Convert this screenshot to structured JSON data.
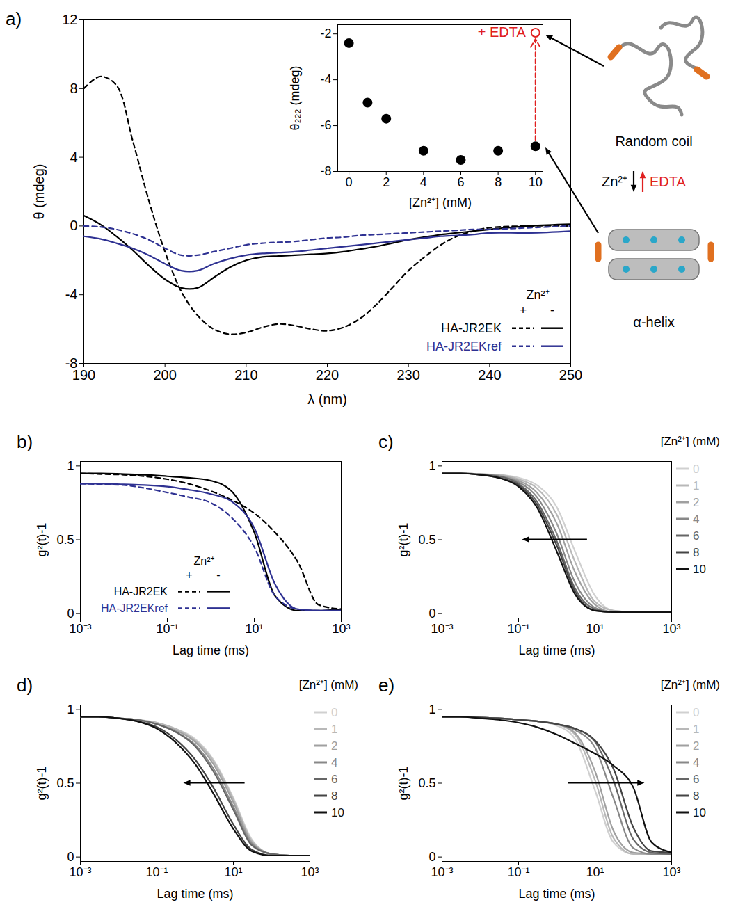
{
  "chart_data": [
    {
      "panel": "a)",
      "type": "line",
      "x_label": "λ (nm)",
      "y_label": "θ (mdeg)",
      "xlim": [
        190,
        250
      ],
      "xticks": [
        190,
        200,
        210,
        220,
        230,
        240,
        250
      ],
      "ylim": [
        -8,
        12
      ],
      "yticks": [
        -8,
        -4,
        0,
        4,
        8,
        12
      ],
      "legend": "bottom-right",
      "legend_title": "Zn²⁺",
      "x": [
        190,
        192,
        194,
        196,
        198,
        200,
        202,
        204,
        206,
        208,
        210,
        212,
        214,
        216,
        218,
        220,
        222,
        224,
        226,
        228,
        230,
        232,
        234,
        236,
        238,
        240,
        245,
        250
      ],
      "series": [
        {
          "name": "HA-JR2EK",
          "group": "+",
          "color": "#000000",
          "line_style": "dashed",
          "values": [
            8.0,
            8.7,
            8.2,
            5.0,
            1.5,
            -1.5,
            -3.8,
            -5.2,
            -6.0,
            -6.3,
            -6.2,
            -5.9,
            -5.7,
            -5.8,
            -6.0,
            -6.1,
            -5.9,
            -5.4,
            -4.6,
            -3.6,
            -2.6,
            -1.8,
            -1.1,
            -0.6,
            -0.3,
            -0.1,
            0,
            0
          ]
        },
        {
          "name": "HA-JR2EK",
          "group": "-",
          "color": "#000000",
          "line_style": "solid",
          "values": [
            0.6,
            0.1,
            -0.6,
            -1.4,
            -2.3,
            -3.1,
            -3.6,
            -3.6,
            -3.0,
            -2.4,
            -2.0,
            -1.8,
            -1.75,
            -1.7,
            -1.65,
            -1.6,
            -1.5,
            -1.35,
            -1.2,
            -1.0,
            -0.8,
            -0.65,
            -0.5,
            -0.4,
            -0.3,
            -0.2,
            0,
            0.1
          ]
        },
        {
          "name": "HA-JR2EKref",
          "group": "+",
          "color": "#2e3192",
          "line_style": "dashed",
          "values": [
            0,
            -0.05,
            -0.2,
            -0.45,
            -0.8,
            -1.3,
            -1.7,
            -1.7,
            -1.5,
            -1.3,
            -1.1,
            -1.0,
            -0.95,
            -0.9,
            -0.8,
            -0.7,
            -0.65,
            -0.55,
            -0.5,
            -0.45,
            -0.4,
            -0.35,
            -0.3,
            -0.25,
            -0.2,
            -0.2,
            -0.1,
            0
          ]
        },
        {
          "name": "HA-JR2EKref",
          "group": "-",
          "color": "#2e3192",
          "line_style": "solid",
          "values": [
            -0.6,
            -0.75,
            -1.0,
            -1.3,
            -1.7,
            -2.2,
            -2.6,
            -2.6,
            -2.2,
            -1.9,
            -1.7,
            -1.6,
            -1.55,
            -1.5,
            -1.4,
            -1.3,
            -1.2,
            -1.1,
            -1.0,
            -0.9,
            -0.8,
            -0.7,
            -0.6,
            -0.55,
            -0.5,
            -0.4,
            -0.4,
            -0.3
          ]
        }
      ],
      "annotations": [
        {
          "text": "Random coil"
        },
        {
          "text": "Zn²⁺"
        },
        {
          "text": "EDTA",
          "color": "#e02020"
        },
        {
          "text": "α-helix"
        }
      ],
      "inset": {
        "type": "scatter",
        "x_label": "[Zn²⁺] (mM)",
        "y_label": "θ₂₂₂ (mdeg)",
        "xlim": [
          -0.6,
          10.4
        ],
        "xticks": [
          0,
          2,
          4,
          6,
          8,
          10
        ],
        "ylim": [
          -8,
          -1.6
        ],
        "yticks": [
          -8,
          -6,
          -4,
          -2
        ],
        "series": [
          {
            "color": "#000000",
            "marker": "circle",
            "x": [
              0,
              1,
              2,
              4,
              6,
              8,
              10
            ],
            "values": [
              -2.4,
              -5.0,
              -5.7,
              -7.1,
              -7.5,
              -7.1,
              -6.9
            ]
          },
          {
            "name": "+ EDTA",
            "color": "#e02020",
            "marker": "open-circle",
            "x": [
              10
            ],
            "values": [
              -1.95
            ]
          }
        ]
      }
    },
    {
      "panel": "b)",
      "type": "line",
      "log": "x",
      "x_label": "Lag time (ms)",
      "y_label": "g²(t)-1",
      "xlim": [
        0.001,
        1000
      ],
      "xticks": [
        {
          "value": 0.001,
          "label": "10⁻³"
        },
        {
          "value": 0.1,
          "label": "10⁻¹"
        },
        {
          "value": 10,
          "label": "10¹"
        },
        {
          "value": 1000,
          "label": "10³"
        }
      ],
      "ylim": [
        -0.03,
        1.03
      ],
      "yticks": [
        0,
        0.5,
        1
      ],
      "legend": "bottom-left",
      "legend_title": "Zn²⁺",
      "x": [
        0.001,
        0.003,
        0.01,
        0.03,
        0.1,
        0.3,
        1,
        3,
        10,
        30,
        100,
        300,
        1000
      ],
      "series": [
        {
          "name": "HA-JR2EK",
          "group": "+",
          "color": "#000000",
          "line_style": "dashed",
          "values": [
            0.95,
            0.945,
            0.94,
            0.93,
            0.91,
            0.88,
            0.83,
            0.77,
            0.68,
            0.55,
            0.35,
            0.06,
            0.03
          ]
        },
        {
          "name": "HA-JR2EK",
          "group": "-",
          "color": "#000000",
          "line_style": "solid",
          "values": [
            0.95,
            0.95,
            0.945,
            0.94,
            0.93,
            0.92,
            0.9,
            0.83,
            0.55,
            0.12,
            0.02,
            0.02,
            0.03
          ]
        },
        {
          "name": "HA-JR2EKref",
          "group": "+",
          "color": "#2e3192",
          "line_style": "dashed",
          "values": [
            0.88,
            0.875,
            0.87,
            0.85,
            0.82,
            0.79,
            0.75,
            0.65,
            0.45,
            0.12,
            0.03,
            0.02,
            0.02
          ]
        },
        {
          "name": "HA-JR2EKref",
          "group": "-",
          "color": "#2e3192",
          "line_style": "solid",
          "values": [
            0.88,
            0.88,
            0.875,
            0.87,
            0.86,
            0.84,
            0.81,
            0.76,
            0.58,
            0.2,
            0.03,
            0.02,
            0.02
          ]
        }
      ]
    },
    {
      "panel": "c)",
      "type": "line",
      "log": "x",
      "x_label": "Lag time (ms)",
      "y_label": "g²(t)-1",
      "xlim": [
        0.001,
        1000
      ],
      "xticks": [
        {
          "value": 0.001,
          "label": "10⁻³"
        },
        {
          "value": 0.1,
          "label": "10⁻¹"
        },
        {
          "value": 10,
          "label": "10¹"
        },
        {
          "value": 1000,
          "label": "10³"
        }
      ],
      "ylim": [
        -0.03,
        1.03
      ],
      "yticks": [
        0,
        0.5,
        1
      ],
      "legend": "right",
      "legend_title": "[Zn²⁺] (mM)",
      "x": [
        0.001,
        0.003,
        0.01,
        0.03,
        0.1,
        0.3,
        1,
        3,
        10,
        30,
        100,
        300,
        1000
      ],
      "series": [
        {
          "name": "0",
          "color": "#d0d0d0",
          "values": [
            0.95,
            0.95,
            0.945,
            0.94,
            0.92,
            0.87,
            0.72,
            0.42,
            0.12,
            0.02,
            0.01,
            0.01,
            0.01
          ]
        },
        {
          "name": "1",
          "color": "#b8b8b8",
          "values": [
            0.95,
            0.95,
            0.945,
            0.94,
            0.91,
            0.85,
            0.67,
            0.35,
            0.08,
            0.02,
            0.01,
            0.01,
            0.01
          ]
        },
        {
          "name": "2",
          "color": "#a0a0a0",
          "values": [
            0.95,
            0.95,
            0.945,
            0.935,
            0.9,
            0.82,
            0.61,
            0.28,
            0.06,
            0.01,
            0.01,
            0.01,
            0.01
          ]
        },
        {
          "name": "4",
          "color": "#888888",
          "values": [
            0.95,
            0.95,
            0.945,
            0.93,
            0.89,
            0.79,
            0.54,
            0.21,
            0.04,
            0.01,
            0.01,
            0.01,
            0.01
          ]
        },
        {
          "name": "6",
          "color": "#666666",
          "values": [
            0.95,
            0.95,
            0.94,
            0.93,
            0.88,
            0.76,
            0.49,
            0.17,
            0.03,
            0.01,
            0.01,
            0.01,
            0.01
          ]
        },
        {
          "name": "8",
          "color": "#444444",
          "values": [
            0.95,
            0.95,
            0.94,
            0.92,
            0.87,
            0.74,
            0.46,
            0.15,
            0.02,
            0.01,
            0.01,
            0.01,
            0.01
          ]
        },
        {
          "name": "10",
          "color": "#111111",
          "values": [
            0.95,
            0.95,
            0.94,
            0.92,
            0.86,
            0.72,
            0.42,
            0.13,
            0.02,
            0.01,
            0.01,
            0.01,
            0.01
          ]
        }
      ]
    },
    {
      "panel": "d)",
      "type": "line",
      "log": "x",
      "x_label": "Lag time (ms)",
      "y_label": "g²(t)-1",
      "xlim": [
        0.001,
        1000
      ],
      "xticks": [
        {
          "value": 0.001,
          "label": "10⁻³"
        },
        {
          "value": 0.1,
          "label": "10⁻¹"
        },
        {
          "value": 10,
          "label": "10¹"
        },
        {
          "value": 1000,
          "label": "10³"
        }
      ],
      "ylim": [
        -0.03,
        1.03
      ],
      "yticks": [
        0,
        0.5,
        1
      ],
      "legend": "right",
      "legend_title": "[Zn²⁺] (mM)",
      "x": [
        0.001,
        0.003,
        0.01,
        0.03,
        0.1,
        0.3,
        1,
        3,
        10,
        30,
        100,
        300,
        1000
      ],
      "series": [
        {
          "name": "0",
          "color": "#d0d0d0",
          "values": [
            0.95,
            0.95,
            0.94,
            0.93,
            0.91,
            0.87,
            0.8,
            0.66,
            0.4,
            0.12,
            0.02,
            0.01,
            0.01
          ]
        },
        {
          "name": "1",
          "color": "#b8b8b8",
          "values": [
            0.95,
            0.95,
            0.94,
            0.93,
            0.91,
            0.87,
            0.79,
            0.65,
            0.39,
            0.11,
            0.02,
            0.01,
            0.01
          ]
        },
        {
          "name": "2",
          "color": "#a0a0a0",
          "values": [
            0.95,
            0.95,
            0.94,
            0.93,
            0.9,
            0.86,
            0.78,
            0.63,
            0.37,
            0.1,
            0.02,
            0.01,
            0.01
          ]
        },
        {
          "name": "4",
          "color": "#888888",
          "values": [
            0.95,
            0.95,
            0.94,
            0.93,
            0.9,
            0.85,
            0.76,
            0.6,
            0.34,
            0.09,
            0.02,
            0.01,
            0.01
          ]
        },
        {
          "name": "6",
          "color": "#666666",
          "values": [
            0.95,
            0.95,
            0.94,
            0.93,
            0.9,
            0.85,
            0.75,
            0.58,
            0.32,
            0.08,
            0.02,
            0.01,
            0.01
          ]
        },
        {
          "name": "8",
          "color": "#444444",
          "values": [
            0.95,
            0.95,
            0.94,
            0.92,
            0.88,
            0.8,
            0.66,
            0.47,
            0.22,
            0.05,
            0.01,
            0.01,
            0.01
          ]
        },
        {
          "name": "10",
          "color": "#111111",
          "values": [
            0.95,
            0.95,
            0.94,
            0.92,
            0.87,
            0.78,
            0.63,
            0.43,
            0.19,
            0.04,
            0.01,
            0.01,
            0.01
          ]
        }
      ]
    },
    {
      "panel": "e)",
      "type": "line",
      "log": "x",
      "x_label": "Lag time (ms)",
      "y_label": "g²(t)-1",
      "xlim": [
        0.001,
        1000
      ],
      "xticks": [
        {
          "value": 0.001,
          "label": "10⁻³"
        },
        {
          "value": 0.1,
          "label": "10⁻¹"
        },
        {
          "value": 10,
          "label": "10¹"
        },
        {
          "value": 1000,
          "label": "10³"
        }
      ],
      "ylim": [
        -0.03,
        1.03
      ],
      "yticks": [
        0,
        0.5,
        1
      ],
      "legend": "right",
      "legend_title": "[Zn²⁺] (mM)",
      "x": [
        0.001,
        0.003,
        0.01,
        0.03,
        0.1,
        0.3,
        1,
        3,
        10,
        30,
        100,
        300,
        1000
      ],
      "series": [
        {
          "name": "0",
          "color": "#d0d0d0",
          "values": [
            0.95,
            0.95,
            0.945,
            0.94,
            0.93,
            0.92,
            0.89,
            0.8,
            0.45,
            0.1,
            0.02,
            0.02,
            0.02
          ]
        },
        {
          "name": "1",
          "color": "#b8b8b8",
          "values": [
            0.95,
            0.95,
            0.945,
            0.94,
            0.93,
            0.92,
            0.9,
            0.83,
            0.52,
            0.13,
            0.02,
            0.02,
            0.02
          ]
        },
        {
          "name": "2",
          "color": "#a0a0a0",
          "values": [
            0.95,
            0.95,
            0.945,
            0.94,
            0.93,
            0.92,
            0.9,
            0.84,
            0.58,
            0.18,
            0.03,
            0.02,
            0.02
          ]
        },
        {
          "name": "4",
          "color": "#888888",
          "values": [
            0.95,
            0.95,
            0.945,
            0.94,
            0.93,
            0.92,
            0.9,
            0.86,
            0.74,
            0.4,
            0.06,
            0.02,
            0.02
          ]
        },
        {
          "name": "6",
          "color": "#666666",
          "values": [
            0.95,
            0.95,
            0.945,
            0.94,
            0.93,
            0.92,
            0.9,
            0.87,
            0.78,
            0.52,
            0.12,
            0.03,
            0.02
          ]
        },
        {
          "name": "8",
          "color": "#444444",
          "values": [
            0.95,
            0.95,
            0.945,
            0.94,
            0.93,
            0.92,
            0.9,
            0.87,
            0.79,
            0.6,
            0.2,
            0.04,
            0.03
          ]
        },
        {
          "name": "10",
          "color": "#111111",
          "values": [
            0.95,
            0.95,
            0.94,
            0.93,
            0.91,
            0.88,
            0.83,
            0.77,
            0.7,
            0.62,
            0.47,
            0.1,
            0.03
          ]
        }
      ]
    }
  ]
}
